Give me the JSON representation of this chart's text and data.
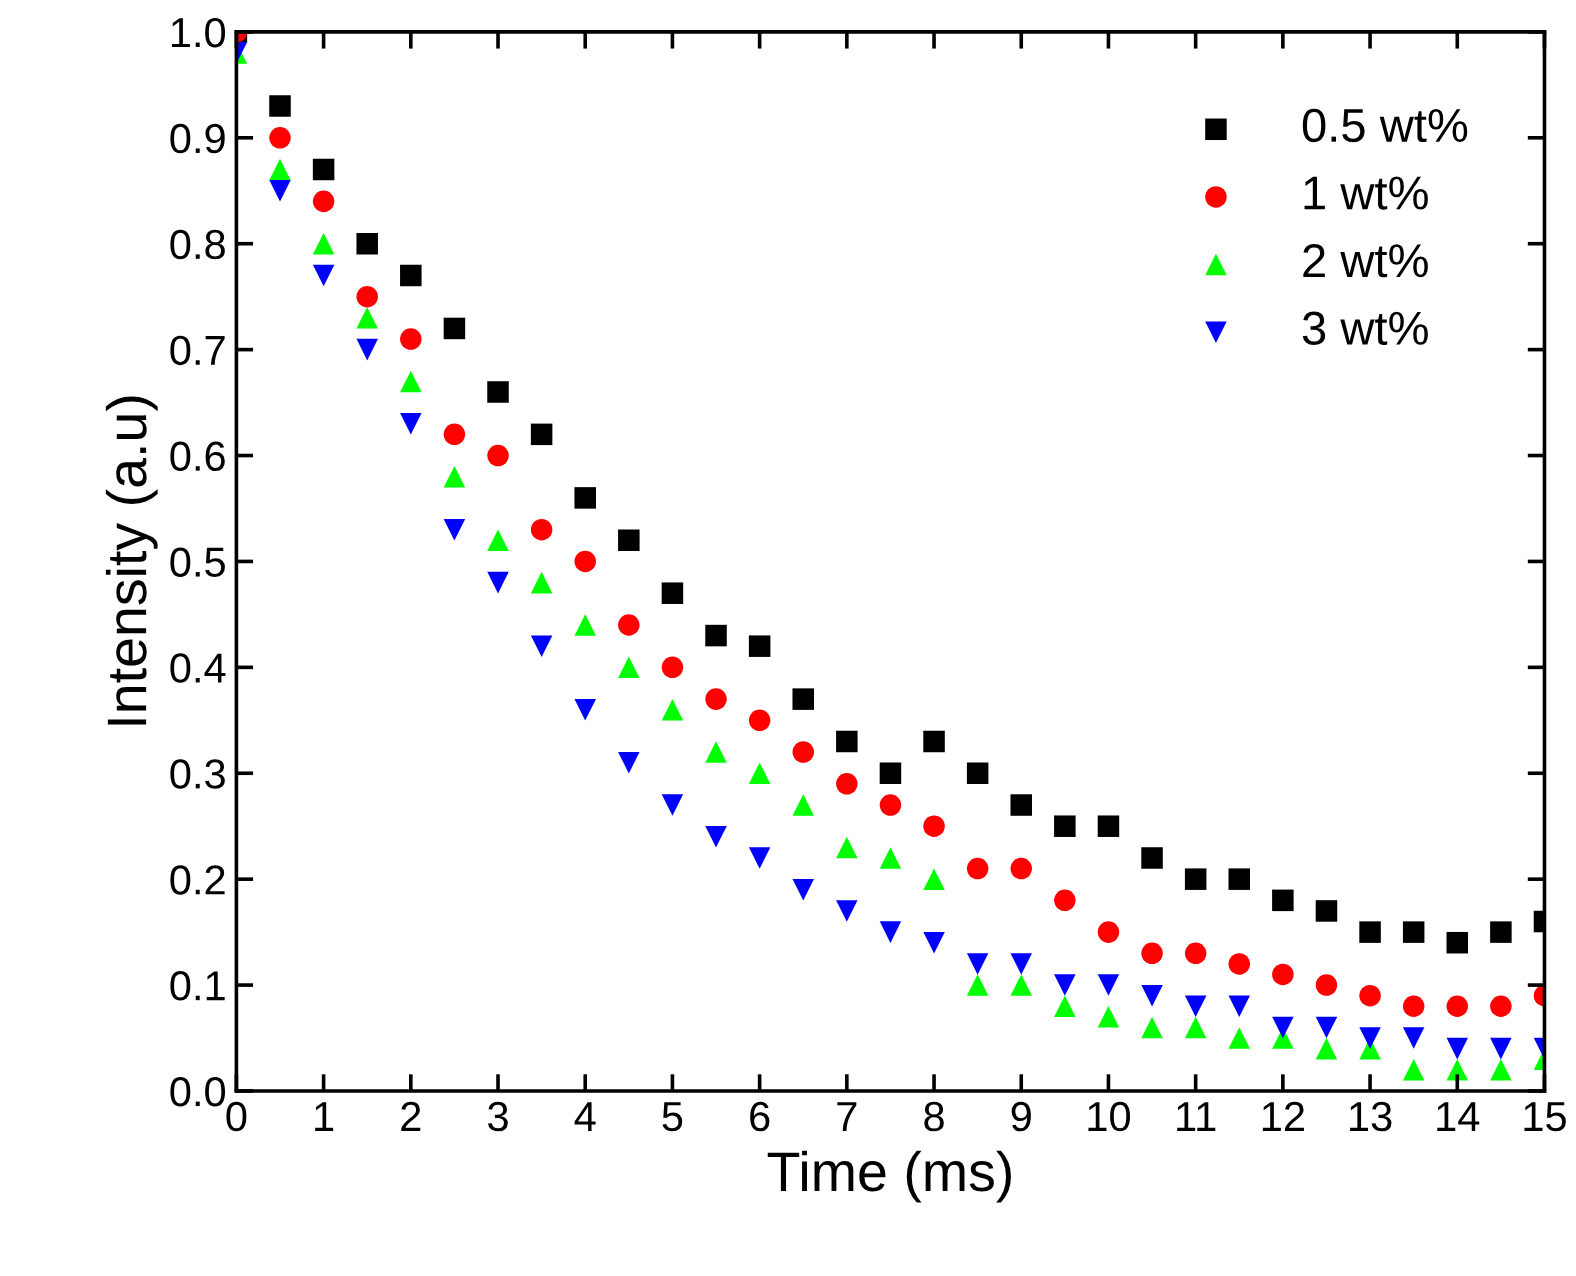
{
  "chart_data": {
    "type": "scatter",
    "xlabel": "Time (ms)",
    "ylabel": "Intensity (a.u)",
    "xlim": [
      0,
      15
    ],
    "ylim": [
      0,
      1
    ],
    "xticks": [
      0,
      1,
      2,
      3,
      4,
      5,
      6,
      7,
      8,
      9,
      10,
      11,
      12,
      13,
      14,
      15
    ],
    "yticks": [
      {
        "value": 0,
        "label": "0.0"
      },
      {
        "value": 0.1,
        "label": "0.1"
      },
      {
        "value": 0.2,
        "label": "0.2"
      },
      {
        "value": 0.3,
        "label": "0.3"
      },
      {
        "value": 0.4,
        "label": "0.4"
      },
      {
        "value": 0.5,
        "label": "0.5"
      },
      {
        "value": 0.6,
        "label": "0.6"
      },
      {
        "value": 0.7,
        "label": "0.7"
      },
      {
        "value": 0.8,
        "label": "0.8"
      },
      {
        "value": 0.9,
        "label": "0.9"
      },
      {
        "value": 1,
        "label": "1.0"
      }
    ],
    "grid": false,
    "legend": "top right",
    "x": [
      0,
      0.5,
      1,
      1.5,
      2,
      2.5,
      3,
      3.5,
      4,
      4.5,
      5,
      5.5,
      6,
      6.5,
      7,
      7.5,
      8,
      8.5,
      9,
      9.5,
      10,
      10.5,
      11,
      11.5,
      12,
      12.5,
      13,
      13.5,
      14,
      14.5,
      15
    ],
    "series": [
      {
        "name": "0.5 wt%",
        "color": "#000000",
        "marker": "square",
        "values": [
          1.0,
          0.93,
          0.87,
          0.8,
          0.77,
          0.72,
          0.66,
          0.62,
          0.56,
          0.52,
          0.47,
          0.43,
          0.42,
          0.37,
          0.33,
          0.3,
          0.33,
          0.3,
          0.27,
          0.25,
          0.25,
          0.22,
          0.2,
          0.2,
          0.18,
          0.17,
          0.15,
          0.15,
          0.14,
          0.15,
          0.16
        ]
      },
      {
        "name": "1 wt%",
        "color": "#ff0000",
        "marker": "circle",
        "values": [
          1.0,
          0.9,
          0.84,
          0.75,
          0.71,
          0.62,
          0.6,
          0.53,
          0.5,
          0.44,
          0.4,
          0.37,
          0.35,
          0.32,
          0.29,
          0.27,
          0.25,
          0.21,
          0.21,
          0.18,
          0.15,
          0.13,
          0.13,
          0.12,
          0.11,
          0.1,
          0.09,
          0.08,
          0.08,
          0.08,
          0.09
        ]
      },
      {
        "name": "2 wt%",
        "color": "#00ff00",
        "marker": "triangle",
        "values": [
          0.98,
          0.87,
          0.8,
          0.73,
          0.67,
          0.58,
          0.52,
          0.48,
          0.44,
          0.4,
          0.36,
          0.32,
          0.3,
          0.27,
          0.23,
          0.22,
          0.2,
          0.1,
          0.1,
          0.08,
          0.07,
          0.06,
          0.06,
          0.05,
          0.05,
          0.04,
          0.04,
          0.02,
          0.02,
          0.02,
          0.03
        ]
      },
      {
        "name": "3 wt%",
        "color": "#0000ff",
        "marker": "triangle_down",
        "values": [
          0.98,
          0.85,
          0.77,
          0.7,
          0.63,
          0.53,
          0.48,
          0.42,
          0.36,
          0.31,
          0.27,
          0.24,
          0.22,
          0.19,
          0.17,
          0.15,
          0.14,
          0.12,
          0.12,
          0.1,
          0.1,
          0.09,
          0.08,
          0.08,
          0.06,
          0.06,
          0.05,
          0.05,
          0.04,
          0.04,
          0.04
        ]
      }
    ]
  }
}
